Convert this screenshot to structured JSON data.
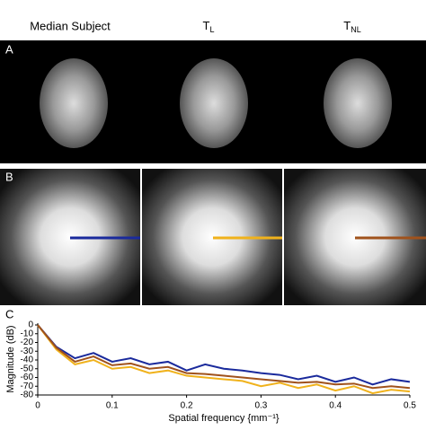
{
  "headers": [
    {
      "main": "Median Subject"
    },
    {
      "main": "T",
      "sub": "L"
    },
    {
      "main": "T",
      "sub": "NL"
    }
  ],
  "panel_labels": [
    "A",
    "B",
    "C"
  ],
  "chart_data": {
    "type": "line",
    "y_label": "Magnitude (dB)",
    "x_label": "Spatial frequency {mm⁻¹}",
    "x": [
      0,
      0.025,
      0.05,
      0.075,
      0.1,
      0.125,
      0.15,
      0.175,
      0.2,
      0.225,
      0.25,
      0.275,
      0.3,
      0.325,
      0.35,
      0.375,
      0.4,
      0.425,
      0.45,
      0.475,
      0.5
    ],
    "series": [
      {
        "color": "#1a2a9c",
        "values": [
          0,
          -25,
          -38,
          -32,
          -42,
          -38,
          -45,
          -42,
          -52,
          -45,
          -50,
          -52,
          -55,
          -57,
          -62,
          -58,
          -65,
          -60,
          -68,
          -62,
          -65
        ]
      },
      {
        "color": "#f0b21c",
        "values": [
          0,
          -28,
          -45,
          -40,
          -50,
          -48,
          -55,
          -52,
          -58,
          -60,
          -62,
          -64,
          -70,
          -66,
          -72,
          -68,
          -75,
          -70,
          -78,
          -74,
          -76
        ]
      },
      {
        "color": "#a0521c",
        "values": [
          0,
          -26,
          -42,
          -36,
          -46,
          -44,
          -50,
          -48,
          -55,
          -56,
          -58,
          -60,
          -62,
          -64,
          -66,
          -65,
          -68,
          -67,
          -72,
          -70,
          -72
        ]
      }
    ],
    "xlim": [
      0,
      0.5
    ],
    "ylim": [
      -80,
      0
    ],
    "xticks": [
      0,
      0.1,
      0.2,
      0.3,
      0.4,
      0.5
    ],
    "yticks": [
      0,
      -10,
      -20,
      -30,
      -40,
      -50,
      -60,
      -70,
      -80
    ]
  }
}
